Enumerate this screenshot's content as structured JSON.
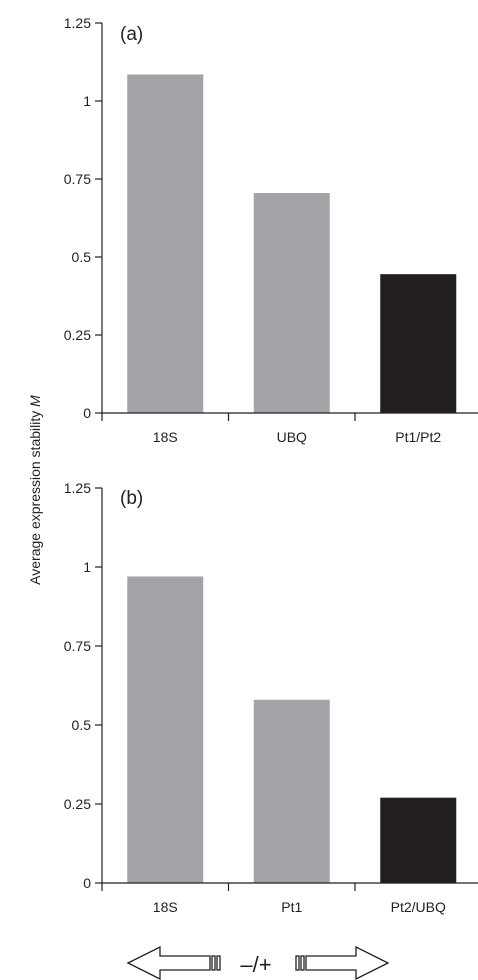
{
  "chart_data": [
    {
      "type": "bar",
      "panel_label": "(a)",
      "categories": [
        "18S",
        "UBQ",
        "Pt1/Pt2"
      ],
      "values": [
        1.085,
        0.705,
        0.445
      ],
      "bar_colors": [
        "#a2a4a7",
        "#a2a4a7",
        "#231f20"
      ],
      "ylim": [
        0,
        1.25
      ],
      "yticks": [
        0,
        0.25,
        0.5,
        0.75,
        1,
        1.25
      ],
      "ytick_labels": [
        "0",
        "0.25",
        "0.5",
        "0.75",
        "1",
        "1.25"
      ],
      "grid": false
    },
    {
      "type": "bar",
      "panel_label": "(b)",
      "categories": [
        "18S",
        "Pt1",
        "Pt2/UBQ"
      ],
      "values": [
        0.97,
        0.58,
        0.27
      ],
      "bar_colors": [
        "#a2a4a7",
        "#a2a4a7",
        "#231f20"
      ],
      "ylim": [
        0,
        1.25
      ],
      "yticks": [
        0,
        0.25,
        0.5,
        0.75,
        1,
        1.25
      ],
      "ytick_labels": [
        "0",
        "0.25",
        "0.5",
        "0.75",
        "1",
        "1.25"
      ],
      "grid": false
    }
  ],
  "ylabel": {
    "main": "Average expression stability ",
    "symbol": "M"
  },
  "legend": {
    "sign": "–/+",
    "left_arrow_icon": "left-arrow-icon",
    "right_arrow_icon": "right-arrow-icon"
  },
  "colors": {
    "ink": "#231f20",
    "bar_gray": "#a2a4a7",
    "bar_dark": "#231f20"
  }
}
